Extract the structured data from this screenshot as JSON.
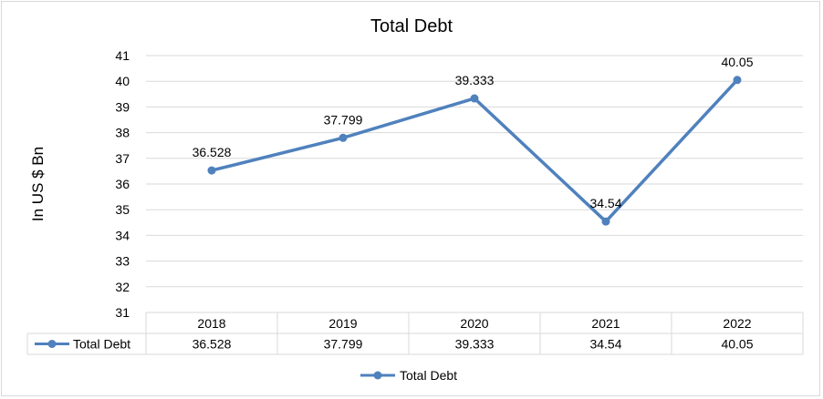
{
  "chart_data": {
    "type": "line",
    "title": "Total Debt",
    "ylabel": "In US $ Bn",
    "xlabel": "",
    "categories": [
      "2018",
      "2019",
      "2020",
      "2021",
      "2022"
    ],
    "series": [
      {
        "name": "Total Debt",
        "values": [
          36.528,
          37.799,
          39.333,
          34.54,
          40.05
        ],
        "color": "#4f81bd"
      }
    ],
    "ylim": [
      31,
      41
    ],
    "yticks": [
      31,
      32,
      33,
      34,
      35,
      36,
      37,
      38,
      39,
      40,
      41
    ],
    "grid": true,
    "data_table": true,
    "legend": "bottom",
    "gridline_color": "#d9d9d9"
  }
}
